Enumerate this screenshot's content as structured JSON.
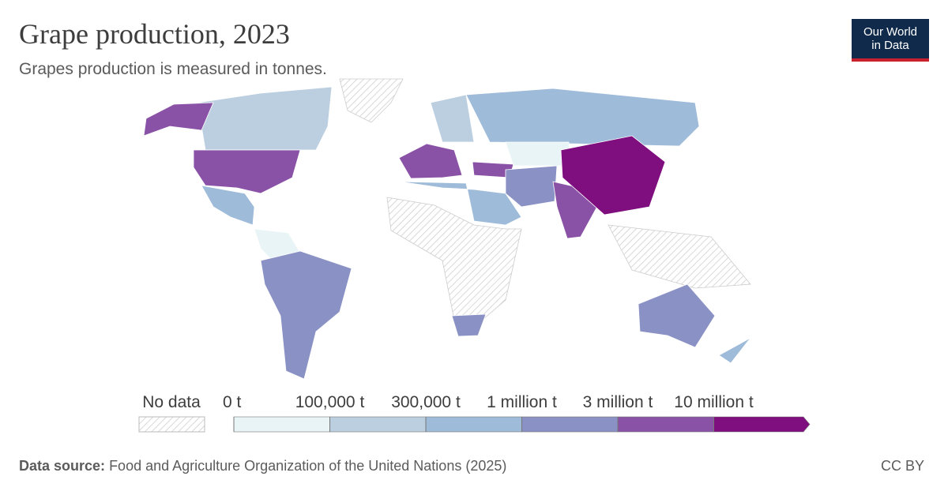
{
  "header": {
    "title": "Grape production, 2023",
    "subtitle": "Grapes production is measured in tonnes.",
    "logo": [
      "Our World",
      "in Data"
    ]
  },
  "legend": {
    "no_data": "No data",
    "ticks": [
      {
        "value": 0,
        "label": "0 t"
      },
      {
        "value": 100000,
        "label": "100,000 t"
      },
      {
        "value": 300000,
        "label": "300,000 t"
      },
      {
        "value": 1000000,
        "label": "1 million t"
      },
      {
        "value": 3000000,
        "label": "3 million t"
      },
      {
        "value": 10000000,
        "label": "10 million t"
      }
    ],
    "colors": [
      "#e8f4f6",
      "#bccfe0",
      "#9ebbd9",
      "#8a91c4",
      "#8a52a6",
      "#7f0f7e"
    ]
  },
  "footer": {
    "source_label": "Data source:",
    "source": "Food and Agriculture Organization of the United Nations (2025)",
    "license": "CC BY"
  }
}
